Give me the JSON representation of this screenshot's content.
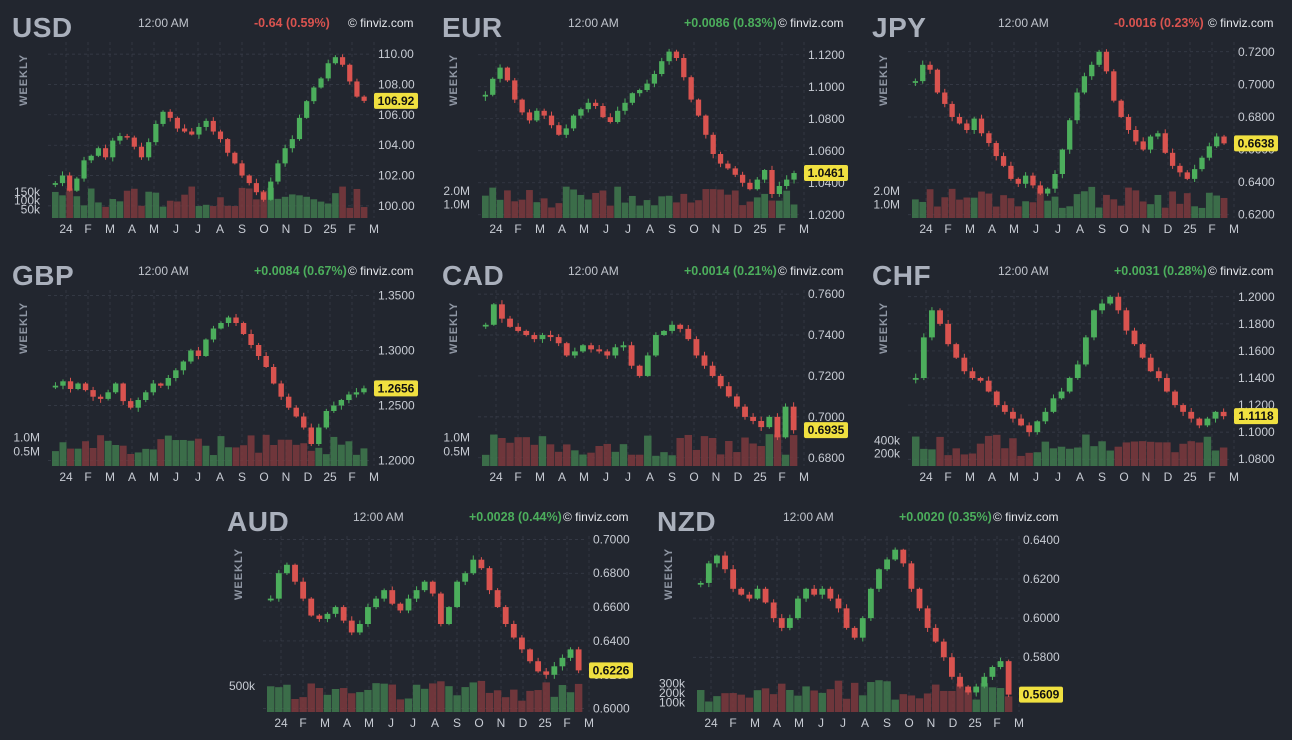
{
  "source_label": "© finviz.com",
  "time_label": "12:00 AM",
  "period_label": "WEEKLY",
  "colors": {
    "up": "#4cae5c",
    "down": "#d9534f",
    "price_tag": "#f0e040",
    "grid": "#3a3f4b",
    "text": "#c8ccd4"
  },
  "month_labels": [
    "24",
    "F",
    "M",
    "A",
    "M",
    "J",
    "J",
    "A",
    "S",
    "O",
    "N",
    "D",
    "25",
    "F",
    "M"
  ],
  "chart_data": [
    {
      "type": "candlestick",
      "symbol": "USD",
      "change_text": "-0.64 (0.59%)",
      "direction": "down",
      "last_price": "106.92",
      "last": 106.92,
      "ylim": [
        99.2,
        110.8
      ],
      "y_ticks": [
        "110.00",
        "108.00",
        "106.00",
        "104.00",
        "102.00",
        "100.00"
      ],
      "y_tick_values": [
        110,
        108,
        106,
        104,
        102,
        100
      ],
      "volume_ticks": [
        "150k",
        "100k",
        "50k"
      ],
      "volume_tick_values": [
        150,
        100,
        50
      ],
      "volume_max": 330,
      "close_path": [
        101.5,
        102.0,
        101.0,
        101.8,
        103.0,
        103.3,
        103.8,
        103.2,
        104.3,
        104.6,
        104.5,
        103.9,
        103.2,
        104.2,
        105.4,
        106.2,
        105.8,
        105.1,
        104.9,
        104.7,
        105.2,
        105.6,
        104.9,
        104.4,
        103.5,
        102.8,
        102.0,
        101.5,
        100.9,
        100.4,
        101.6,
        102.8,
        103.8,
        104.4,
        105.8,
        106.9,
        107.8,
        108.4,
        109.4,
        109.8,
        109.3,
        108.2,
        107.2,
        106.92
      ]
    },
    {
      "type": "candlestick",
      "symbol": "EUR",
      "change_text": "+0.0086 (0.83%)",
      "direction": "up",
      "last_price": "1.0461",
      "last": 1.0461,
      "ylim": [
        1.018,
        1.128
      ],
      "y_ticks": [
        "1.1200",
        "1.1000",
        "1.0800",
        "1.0600",
        "1.0400",
        "1.0200"
      ],
      "y_tick_values": [
        1.12,
        1.1,
        1.08,
        1.06,
        1.04,
        1.02
      ],
      "volume_ticks": [
        "2.0M",
        "1.0M"
      ],
      "volume_tick_values": [
        2.0,
        1.0
      ],
      "volume_max": 4.2,
      "close_path": [
        1.095,
        1.105,
        1.112,
        1.104,
        1.092,
        1.084,
        1.079,
        1.085,
        1.082,
        1.076,
        1.07,
        1.074,
        1.082,
        1.086,
        1.09,
        1.088,
        1.081,
        1.078,
        1.085,
        1.09,
        1.096,
        1.098,
        1.102,
        1.108,
        1.116,
        1.122,
        1.118,
        1.106,
        1.092,
        1.082,
        1.07,
        1.058,
        1.052,
        1.049,
        1.045,
        1.04,
        1.036,
        1.042,
        1.048,
        1.033,
        1.038,
        1.042,
        1.0461
      ]
    },
    {
      "type": "candlestick",
      "symbol": "JPY",
      "change_text": "-0.0016 (0.23%)",
      "direction": "down",
      "last_price": "0.6638",
      "last": 0.6638,
      "ylim": [
        0.618,
        0.726
      ],
      "y_ticks": [
        "0.7200",
        "0.7000",
        "0.6800",
        "0.6600",
        "0.6400",
        "0.6200"
      ],
      "y_tick_values": [
        0.72,
        0.7,
        0.68,
        0.66,
        0.64,
        0.62
      ],
      "volume_ticks": [
        "2.0M",
        "1.0M"
      ],
      "volume_tick_values": [
        2.0,
        1.0
      ],
      "volume_max": 4.2,
      "close_path": [
        0.702,
        0.712,
        0.709,
        0.695,
        0.688,
        0.68,
        0.676,
        0.672,
        0.679,
        0.67,
        0.664,
        0.656,
        0.65,
        0.642,
        0.639,
        0.644,
        0.638,
        0.633,
        0.636,
        0.645,
        0.66,
        0.678,
        0.695,
        0.705,
        0.712,
        0.72,
        0.708,
        0.69,
        0.68,
        0.672,
        0.665,
        0.66,
        0.668,
        0.67,
        0.658,
        0.65,
        0.646,
        0.642,
        0.648,
        0.655,
        0.662,
        0.668,
        0.6638
      ]
    },
    {
      "type": "candlestick",
      "symbol": "GBP",
      "change_text": "+0.0084 (0.67%)",
      "direction": "up",
      "last_price": "1.2656",
      "last": 1.2656,
      "ylim": [
        1.195,
        1.355
      ],
      "y_ticks": [
        "1.3500",
        "1.3000",
        "1.2500",
        "1.2000"
      ],
      "y_tick_values": [
        1.35,
        1.3,
        1.25,
        1.2
      ],
      "volume_ticks": [
        "1.0M",
        "0.5M"
      ],
      "volume_tick_values": [
        1.0,
        0.5
      ],
      "volume_max": 2.0,
      "close_path": [
        1.268,
        1.272,
        1.265,
        1.27,
        1.264,
        1.258,
        1.256,
        1.262,
        1.27,
        1.254,
        1.248,
        1.255,
        1.262,
        1.27,
        1.268,
        1.275,
        1.282,
        1.29,
        1.3,
        1.295,
        1.31,
        1.32,
        1.325,
        1.33,
        1.325,
        1.315,
        1.305,
        1.295,
        1.285,
        1.27,
        1.258,
        1.248,
        1.24,
        1.23,
        1.215,
        1.23,
        1.245,
        1.25,
        1.255,
        1.26,
        1.262,
        1.2656
      ]
    },
    {
      "type": "candlestick",
      "symbol": "CAD",
      "change_text": "+0.0014 (0.21%)",
      "direction": "up",
      "last_price": "0.6935",
      "last": 0.6935,
      "ylim": [
        0.676,
        0.762
      ],
      "y_ticks": [
        "0.7600",
        "0.7400",
        "0.7200",
        "0.7000",
        "0.6800"
      ],
      "y_tick_values": [
        0.76,
        0.74,
        0.72,
        0.7,
        0.68
      ],
      "volume_ticks": [
        "1.0M",
        "0.5M"
      ],
      "volume_tick_values": [
        1.0,
        0.5
      ],
      "volume_max": 2.0,
      "close_path": [
        0.745,
        0.755,
        0.748,
        0.744,
        0.742,
        0.74,
        0.738,
        0.74,
        0.739,
        0.736,
        0.73,
        0.732,
        0.735,
        0.733,
        0.732,
        0.73,
        0.734,
        0.735,
        0.725,
        0.72,
        0.73,
        0.74,
        0.742,
        0.745,
        0.743,
        0.738,
        0.73,
        0.725,
        0.72,
        0.715,
        0.71,
        0.705,
        0.7,
        0.698,
        0.695,
        0.7,
        0.69,
        0.705,
        0.6935
      ]
    },
    {
      "type": "candlestick",
      "symbol": "CHF",
      "change_text": "+0.0031 (0.28%)",
      "direction": "up",
      "last_price": "1.1118",
      "last": 1.1118,
      "ylim": [
        1.075,
        1.205
      ],
      "y_ticks": [
        "1.2000",
        "1.1800",
        "1.1600",
        "1.1400",
        "1.1200",
        "1.1000",
        "1.0800"
      ],
      "y_tick_values": [
        1.2,
        1.18,
        1.16,
        1.14,
        1.12,
        1.1,
        1.08
      ],
      "volume_ticks": [
        "400k",
        "200k"
      ],
      "volume_tick_values": [
        400,
        200
      ],
      "volume_max": 900,
      "close_path": [
        1.14,
        1.17,
        1.19,
        1.18,
        1.165,
        1.155,
        1.145,
        1.14,
        1.138,
        1.13,
        1.12,
        1.115,
        1.11,
        1.105,
        1.1,
        1.108,
        1.115,
        1.125,
        1.13,
        1.14,
        1.15,
        1.17,
        1.19,
        1.195,
        1.2,
        1.19,
        1.175,
        1.165,
        1.155,
        1.145,
        1.14,
        1.13,
        1.12,
        1.115,
        1.11,
        1.105,
        1.11,
        1.115,
        1.1118
      ]
    },
    {
      "type": "candlestick",
      "symbol": "AUD",
      "change_text": "+0.0028 (0.44%)",
      "direction": "up",
      "last_price": "0.6226",
      "last": 0.6226,
      "ylim": [
        0.598,
        0.702
      ],
      "y_ticks": [
        "0.7000",
        "0.6800",
        "0.6600",
        "0.6400",
        "0.6200",
        "0.6000"
      ],
      "y_tick_values": [
        0.7,
        0.68,
        0.66,
        0.64,
        0.62,
        0.6
      ],
      "volume_ticks": [
        "500k"
      ],
      "volume_tick_values": [
        500
      ],
      "volume_max": 1100,
      "close_path": [
        0.665,
        0.68,
        0.685,
        0.675,
        0.665,
        0.655,
        0.653,
        0.656,
        0.66,
        0.652,
        0.645,
        0.65,
        0.66,
        0.665,
        0.67,
        0.662,
        0.658,
        0.665,
        0.67,
        0.675,
        0.668,
        0.65,
        0.66,
        0.675,
        0.68,
        0.688,
        0.683,
        0.67,
        0.66,
        0.65,
        0.642,
        0.635,
        0.628,
        0.622,
        0.62,
        0.625,
        0.63,
        0.635,
        0.6226
      ]
    },
    {
      "type": "candlestick",
      "symbol": "NZD",
      "change_text": "+0.0020 (0.35%)",
      "direction": "up",
      "last_price": "0.5609",
      "last": 0.5609,
      "ylim": [
        0.552,
        0.642
      ],
      "y_ticks": [
        "0.6400",
        "0.6200",
        "0.6000",
        "0.5800"
      ],
      "y_tick_values": [
        0.64,
        0.62,
        0.6,
        0.58
      ],
      "volume_ticks": [
        "300k",
        "200k",
        "100k"
      ],
      "volume_tick_values": [
        300,
        200,
        100
      ],
      "volume_max": 600,
      "close_path": [
        0.618,
        0.628,
        0.632,
        0.625,
        0.615,
        0.612,
        0.61,
        0.615,
        0.608,
        0.6,
        0.595,
        0.6,
        0.61,
        0.615,
        0.612,
        0.615,
        0.61,
        0.605,
        0.595,
        0.59,
        0.6,
        0.615,
        0.625,
        0.63,
        0.635,
        0.628,
        0.615,
        0.605,
        0.595,
        0.588,
        0.58,
        0.57,
        0.565,
        0.562,
        0.565,
        0.57,
        0.575,
        0.578,
        0.5609
      ]
    }
  ]
}
